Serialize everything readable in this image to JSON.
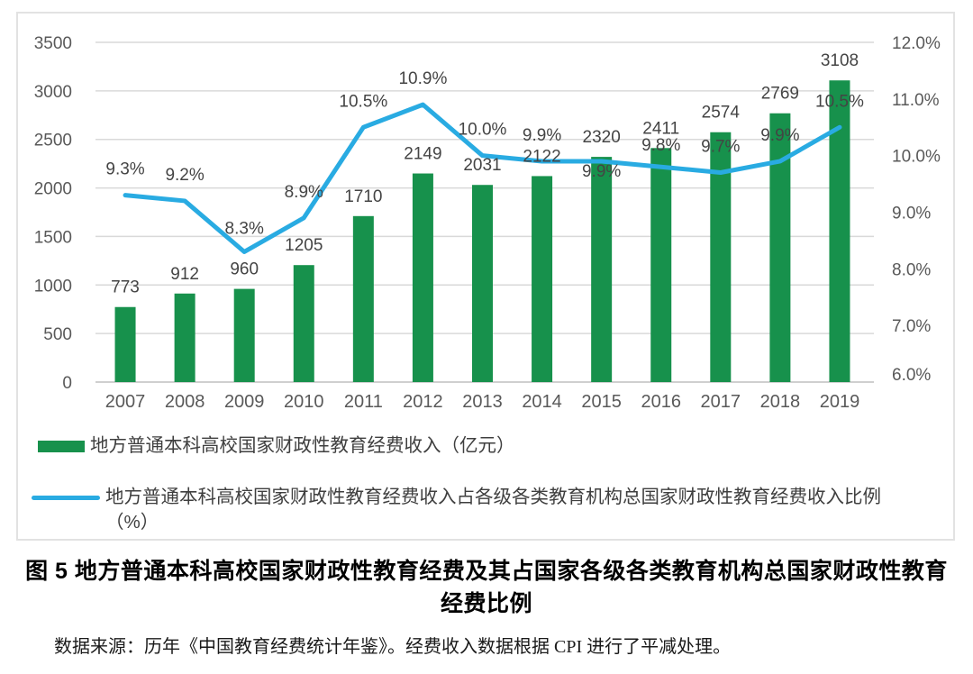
{
  "figure": {
    "caption_title": "图 5 地方普通本科高校国家财政性教育经费及其占国家各级各类教育机构总国家财政性教育经费比例",
    "caption_source": "数据来源：历年《中国教育经费统计年鉴》。经费收入数据根据 CPI 进行了平减处理。"
  },
  "legend": {
    "bar_series_label": "地方普通本科高校国家财政性教育经费收入（亿元）",
    "line_series_label_line1": "地方普通本科高校国家财政性教育经费收入占各级各类教育机构总国家财政性教育经费收入比例",
    "line_series_label_line2": "（%）"
  },
  "chart_data": {
    "type": "combo",
    "categories": [
      "2007",
      "2008",
      "2009",
      "2010",
      "2011",
      "2012",
      "2013",
      "2014",
      "2015",
      "2016",
      "2017",
      "2018",
      "2019"
    ],
    "series": [
      {
        "name": "地方普通本科高校国家财政性教育经费收入（亿元）",
        "type": "bar",
        "axis": "left",
        "color": "#17914C",
        "values": [
          773,
          912,
          960,
          1205,
          1710,
          2149,
          2031,
          2122,
          2320,
          2411,
          2574,
          2769,
          3108
        ],
        "data_labels": [
          "773",
          "912",
          "960",
          "1205",
          "1710",
          "2149",
          "2031",
          "2122",
          "2320",
          "2411",
          "2574",
          "2769",
          "3108"
        ]
      },
      {
        "name": "地方普通本科高校国家财政性教育经费收入占各级各类教育机构总国家财政性教育经费收入比例（%）",
        "type": "line",
        "axis": "right",
        "color": "#29ABE2",
        "values": [
          9.3,
          9.2,
          8.3,
          8.9,
          10.5,
          10.9,
          10.0,
          9.9,
          9.9,
          9.8,
          9.7,
          9.9,
          10.5
        ],
        "data_labels": [
          "9.3%",
          "9.2%",
          "8.3%",
          "8.9%",
          "10.5%",
          "10.9%",
          "10.0%",
          "9.9%",
          "9.9%",
          "9.8%",
          "9.7%",
          "9.9%",
          "10.5%"
        ]
      }
    ],
    "left_axis": {
      "min": 0,
      "max": 3500,
      "step": 500,
      "tick_labels": [
        "0",
        "500",
        "1000",
        "1500",
        "2000",
        "2500",
        "3000",
        "3500"
      ]
    },
    "right_axis": {
      "min": 6.0,
      "max": 12.0,
      "step": 1.0,
      "tick_labels": [
        "6.0%",
        "7.0%",
        "8.0%",
        "9.0%",
        "10.0%",
        "11.0%",
        "12.0%"
      ]
    },
    "grid": "horizontal",
    "legend_position": "bottom-left",
    "colors": {
      "grid": "#D9D9D9",
      "axis_line": "#BFBFBF",
      "axis_text": "#595959",
      "label_text": "#444444",
      "background": "#FFFFFF"
    }
  }
}
